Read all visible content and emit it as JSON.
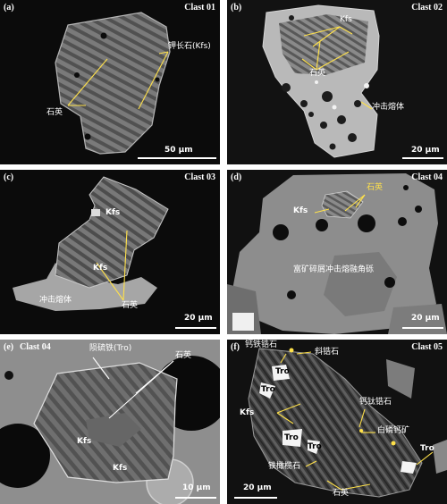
{
  "panels": {
    "a": {
      "letter": "(a)",
      "clast": "Clast 01",
      "kfs": "钾长石(Kfs)",
      "quartz": "石英",
      "scale": "50 μm"
    },
    "b": {
      "letter": "(b)",
      "clast": "Clast 02",
      "kfs": "Kfs",
      "quartz": "石英",
      "melt": "冲击熔体",
      "scale": "20 μm"
    },
    "c": {
      "letter": "(c)",
      "clast": "Clast 03",
      "kfs_top": "Kfs",
      "kfs_mid": "Kfs",
      "melt": "冲击熔体",
      "quartz": "石英",
      "scale": "20 μm"
    },
    "d": {
      "letter": "(d)",
      "clast": "Clast 04",
      "quartz": "石英",
      "kfs": "Kfs",
      "breccia": "富矿碎屑冲击熔融角砾",
      "scale": "20 μm"
    },
    "e": {
      "letter": "(e)",
      "clast": "Clast 04",
      "tro": "陨硫铁(Tro)",
      "quartz": "石英",
      "kfs1": "Kfs",
      "kfs2": "Kfs",
      "scale": "10 μm"
    },
    "f": {
      "letter": "(f)",
      "clast": "Clast 05",
      "zirconolite": "钙铁锆石",
      "baddeleyite": "斜锆石",
      "tro1": "Tro",
      "tro2": "Tro",
      "tro3": "Tro",
      "tro4": "Tro",
      "kfs": "Kfs",
      "tranquillityite": "钙钛锆石",
      "apatite": "白磷钙矿",
      "tro5": "Tro",
      "pyroxferroite": "铁橄榄石",
      "quartz": "石英",
      "scale": "20 μm"
    }
  }
}
